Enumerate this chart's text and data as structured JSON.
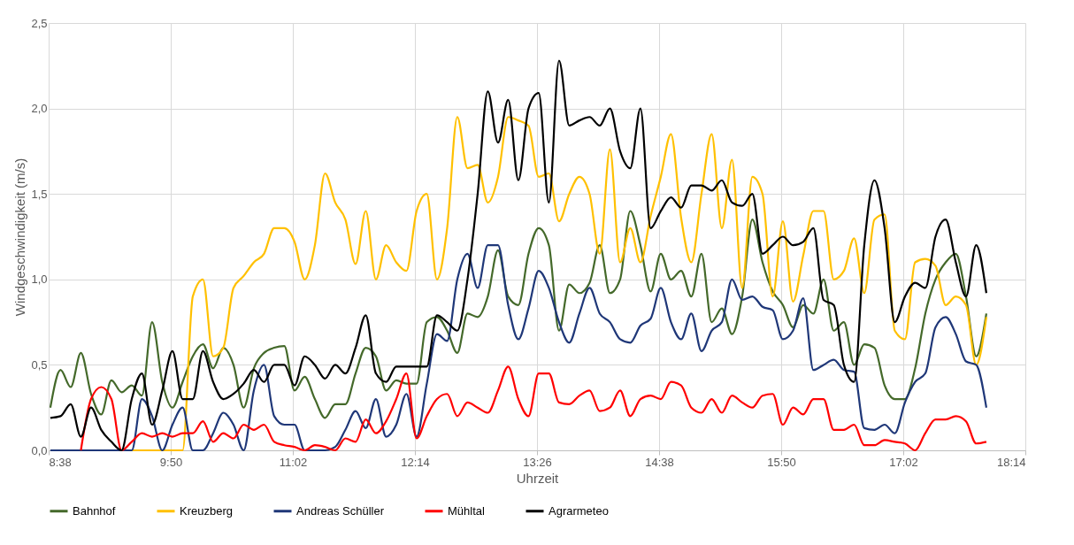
{
  "chart_data": {
    "type": "line",
    "xlabel": "Uhrzeit",
    "ylabel": "Windgeschwindigkeit (m/s)",
    "x": [
      8.65,
      8.75,
      8.85,
      8.95,
      9.05,
      9.15,
      9.25,
      9.35,
      9.45,
      9.55,
      9.65,
      9.75,
      9.85,
      9.95,
      10.05,
      10.15,
      10.25,
      10.35,
      10.45,
      10.55,
      10.65,
      10.75,
      10.85,
      10.95,
      11.05,
      11.15,
      11.25,
      11.35,
      11.45,
      11.55,
      11.65,
      11.75,
      11.85,
      11.95,
      12.05,
      12.15,
      12.25,
      12.35,
      12.45,
      12.55,
      12.65,
      12.75,
      12.85,
      12.95,
      13.05,
      13.15,
      13.25,
      13.35,
      13.45,
      13.55,
      13.65,
      13.75,
      13.85,
      13.95,
      14.05,
      14.15,
      14.25,
      14.35,
      14.45,
      14.55,
      14.65,
      14.75,
      14.85,
      14.95,
      15.05,
      15.15,
      15.25,
      15.35,
      15.45,
      15.55,
      15.65,
      15.75,
      15.85,
      15.95,
      16.05,
      16.15,
      16.25,
      16.35,
      16.45,
      16.55,
      16.65,
      16.75,
      16.85,
      16.95,
      17.05,
      17.15,
      17.25,
      17.35,
      17.45,
      17.55,
      17.65,
      17.75,
      17.85
    ],
    "series": [
      {
        "name": "Bahnhof",
        "color": "#44692a",
        "values": [
          0.25,
          0.47,
          0.37,
          0.57,
          0.33,
          0.21,
          0.41,
          0.34,
          0.38,
          0.32,
          0.75,
          0.4,
          0.25,
          0.4,
          0.55,
          0.62,
          0.48,
          0.6,
          0.5,
          0.25,
          0.48,
          0.57,
          0.6,
          0.61,
          0.35,
          0.43,
          0.3,
          0.19,
          0.27,
          0.27,
          0.45,
          0.6,
          0.55,
          0.35,
          0.41,
          0.39,
          0.39,
          0.75,
          0.78,
          0.7,
          0.57,
          0.8,
          0.78,
          0.9,
          1.17,
          0.9,
          0.85,
          1.15,
          1.3,
          1.2,
          0.7,
          0.97,
          0.92,
          0.98,
          1.2,
          0.92,
          1.0,
          1.4,
          1.2,
          0.93,
          1.15,
          1.0,
          1.05,
          0.9,
          1.15,
          0.75,
          0.83,
          0.68,
          0.9,
          1.35,
          1.1,
          0.93,
          0.85,
          0.72,
          0.85,
          0.8,
          1.0,
          0.7,
          0.75,
          0.5,
          0.62,
          0.6,
          0.38,
          0.3,
          0.3,
          0.48,
          0.8,
          1.0,
          1.1,
          1.15,
          0.9,
          0.55,
          0.8
        ]
      },
      {
        "name": "Kreuzberg",
        "color": "#ffc000",
        "values": [
          null,
          null,
          null,
          null,
          null,
          null,
          0,
          0,
          0,
          0,
          0,
          0,
          0,
          0,
          0.9,
          1.0,
          0.55,
          0.6,
          0.95,
          1.02,
          1.1,
          1.15,
          1.3,
          1.3,
          1.22,
          1.0,
          1.2,
          1.62,
          1.45,
          1.35,
          1.09,
          1.4,
          1.0,
          1.2,
          1.1,
          1.05,
          1.4,
          1.5,
          1.0,
          1.3,
          1.95,
          1.65,
          1.67,
          1.45,
          1.6,
          1.95,
          1.93,
          1.9,
          1.6,
          1.62,
          1.34,
          1.5,
          1.6,
          1.5,
          1.15,
          1.76,
          1.1,
          1.3,
          1.1,
          1.37,
          1.6,
          1.85,
          1.36,
          1.1,
          1.5,
          1.85,
          1.3,
          1.7,
          0.95,
          1.6,
          1.5,
          0.9,
          1.34,
          0.87,
          1.14,
          1.4,
          1.4,
          1.0,
          1.05,
          1.24,
          0.92,
          1.35,
          1.38,
          0.7,
          0.65,
          1.1,
          1.12,
          1.08,
          0.85,
          0.9,
          0.85,
          0.5,
          0.78
        ]
      },
      {
        "name": "Andreas Schüller",
        "color": "#1f3778",
        "values": [
          0,
          0,
          0,
          0,
          0,
          0,
          0,
          0,
          0,
          0.3,
          0.2,
          0,
          0.15,
          0.25,
          0,
          0,
          0.1,
          0.22,
          0.15,
          0,
          0.35,
          0.5,
          0.2,
          0.15,
          0.15,
          0,
          0,
          0,
          0.02,
          0.12,
          0.23,
          0.13,
          0.3,
          0.08,
          0.15,
          0.33,
          0.08,
          0.39,
          0.68,
          0.64,
          1.0,
          1.15,
          0.95,
          1.2,
          1.2,
          0.85,
          0.65,
          0.83,
          1.05,
          0.95,
          0.75,
          0.63,
          0.8,
          0.95,
          0.8,
          0.75,
          0.65,
          0.63,
          0.73,
          0.77,
          0.95,
          0.75,
          0.65,
          0.8,
          0.58,
          0.7,
          0.75,
          1.0,
          0.88,
          0.9,
          0.84,
          0.82,
          0.65,
          0.7,
          0.89,
          0.47,
          0.5,
          0.53,
          0.47,
          0.46,
          0.13,
          0.12,
          0.15,
          0.1,
          0.28,
          0.4,
          0.45,
          0.72,
          0.78,
          0.68,
          0.52,
          0.5,
          0.25
        ]
      },
      {
        "name": "Mühltal",
        "color": "#ff0000",
        "values": [
          null,
          null,
          null,
          0,
          0.3,
          0.37,
          0.3,
          0,
          0.05,
          0.1,
          0.08,
          0.1,
          0.08,
          0.1,
          0.1,
          0.17,
          0.05,
          0.1,
          0.07,
          0.15,
          0.12,
          0.15,
          0.05,
          0.03,
          0.02,
          0,
          0.03,
          0.02,
          0,
          0.07,
          0.05,
          0.18,
          0.1,
          0.17,
          0.3,
          0.45,
          0.07,
          0.2,
          0.3,
          0.33,
          0.2,
          0.28,
          0.25,
          0.22,
          0.35,
          0.49,
          0.3,
          0.2,
          0.45,
          0.45,
          0.28,
          0.27,
          0.32,
          0.35,
          0.23,
          0.25,
          0.35,
          0.2,
          0.3,
          0.32,
          0.3,
          0.4,
          0.38,
          0.25,
          0.22,
          0.3,
          0.22,
          0.32,
          0.28,
          0.25,
          0.32,
          0.33,
          0.15,
          0.25,
          0.21,
          0.3,
          0.3,
          0.12,
          0.12,
          0.15,
          0.03,
          0.03,
          0.06,
          0.05,
          0.04,
          0,
          0.1,
          0.18,
          0.18,
          0.2,
          0.17,
          0.04,
          0.05
        ]
      },
      {
        "name": "Agrarmeteo",
        "color": "#000000",
        "values": [
          0.19,
          0.2,
          0.27,
          0.08,
          0.25,
          0.12,
          0.05,
          0,
          0.3,
          0.45,
          0.15,
          0.35,
          0.58,
          0.3,
          0.3,
          0.58,
          0.4,
          0.3,
          0.33,
          0.39,
          0.47,
          0.4,
          0.5,
          0.5,
          0.38,
          0.55,
          0.5,
          0.42,
          0.5,
          0.45,
          0.6,
          0.79,
          0.45,
          0.4,
          0.49,
          0.49,
          0.49,
          0.49,
          0.79,
          0.75,
          0.7,
          1.0,
          1.5,
          2.1,
          1.8,
          2.05,
          1.58,
          2.0,
          2.09,
          1.45,
          2.28,
          1.9,
          1.93,
          1.95,
          1.9,
          2.0,
          1.75,
          1.65,
          2.0,
          1.3,
          1.4,
          1.48,
          1.42,
          1.55,
          1.55,
          1.52,
          1.58,
          1.45,
          1.43,
          1.5,
          1.15,
          1.2,
          1.25,
          1.2,
          1.22,
          1.3,
          0.88,
          0.85,
          0.5,
          0.4,
          1.2,
          1.58,
          1.3,
          0.75,
          0.9,
          0.98,
          0.95,
          1.25,
          1.35,
          1.1,
          0.9,
          1.2,
          0.92
        ]
      }
    ],
    "xlim": [
      8.6333,
      18.2333
    ],
    "xticks": [
      {
        "value": 8.6333,
        "label": "8:38"
      },
      {
        "value": 9.8333,
        "label": "9:50"
      },
      {
        "value": 11.0333,
        "label": "11:02"
      },
      {
        "value": 12.2333,
        "label": "12:14"
      },
      {
        "value": 13.4333,
        "label": "13:26"
      },
      {
        "value": 14.6333,
        "label": "14:38"
      },
      {
        "value": 15.8333,
        "label": "15:50"
      },
      {
        "value": 17.0333,
        "label": "17:02"
      },
      {
        "value": 18.2333,
        "label": "18:14"
      }
    ],
    "ylim": [
      0,
      2.5
    ],
    "yticks": [
      {
        "value": 0,
        "label": "0,0"
      },
      {
        "value": 0.5,
        "label": "0,5"
      },
      {
        "value": 1,
        "label": "1,0"
      },
      {
        "value": 1.5,
        "label": "1,5"
      },
      {
        "value": 2,
        "label": "2,0"
      },
      {
        "value": 2.5,
        "label": "2,5"
      }
    ],
    "grid": true,
    "legend": "bottom",
    "marker": "none",
    "line_style": "solid"
  }
}
